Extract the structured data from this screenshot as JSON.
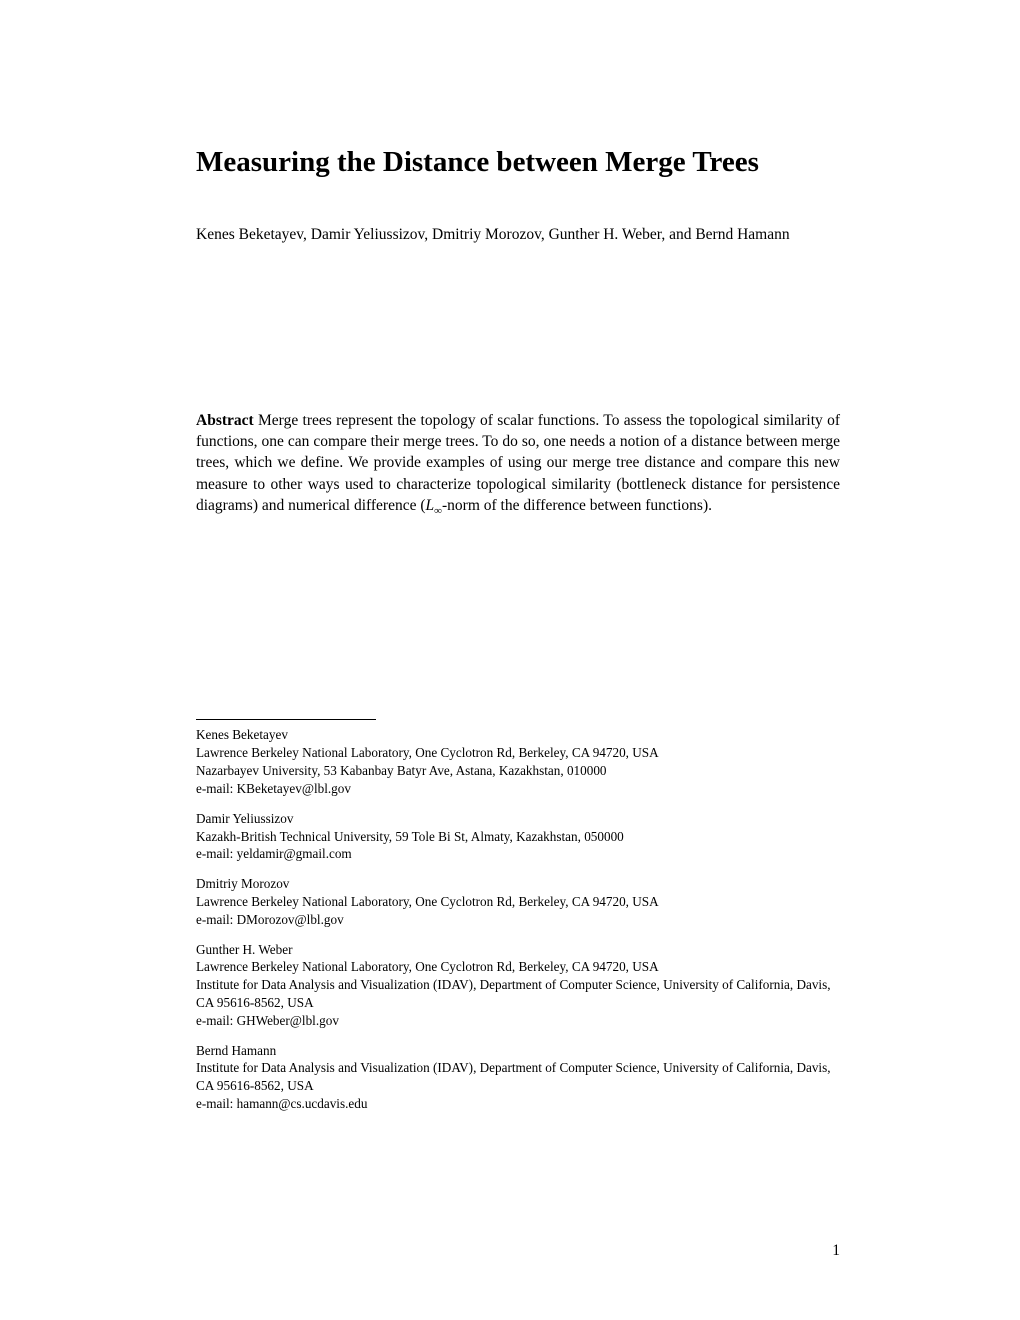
{
  "title": "Measuring the Distance between Merge Trees",
  "authors_line": "Kenes Beketayev, Damir Yeliussizov, Dmitriy Morozov, Gunther H. Weber, and Bernd Hamann",
  "abstract_label": "Abstract",
  "abstract_text_1": " Merge trees represent the topology of scalar functions. To assess the topological similarity of functions, one can compare their merge trees. To do so, one needs a notion of a distance between merge trees, which we define. We provide examples of using our merge tree distance and compare this new measure to other ways used to characterize topological similarity (bottleneck distance for persistence diagrams) and numerical difference (",
  "abstract_L": "L",
  "abstract_infinity": "∞",
  "abstract_text_2": "-norm of the difference between functions).",
  "affiliations": [
    {
      "name": "Kenes Beketayev",
      "lines": [
        "Lawrence Berkeley National Laboratory, One Cyclotron Rd, Berkeley, CA 94720, USA",
        "Nazarbayev University, 53 Kabanbay Batyr Ave, Astana, Kazakhstan, 010000",
        "e-mail: KBeketayev@lbl.gov"
      ]
    },
    {
      "name": "Damir Yeliussizov",
      "lines": [
        "Kazakh-British Technical University, 59 Tole Bi St, Almaty, Kazakhstan, 050000",
        "e-mail: yeldamir@gmail.com"
      ]
    },
    {
      "name": "Dmitriy Morozov",
      "lines": [
        "Lawrence Berkeley National Laboratory, One Cyclotron Rd, Berkeley, CA 94720, USA",
        "e-mail: DMorozov@lbl.gov"
      ]
    },
    {
      "name": "Gunther H. Weber",
      "lines": [
        "Lawrence Berkeley National Laboratory, One Cyclotron Rd, Berkeley, CA 94720, USA",
        "Institute for Data Analysis and Visualization (IDAV), Department of Computer Science, University of California, Davis, CA 95616-8562, USA",
        "e-mail: GHWeber@lbl.gov"
      ]
    },
    {
      "name": "Bernd Hamann",
      "lines": [
        "Institute for Data Analysis and Visualization (IDAV), Department of Computer Science, University of California, Davis, CA 95616-8562, USA",
        "e-mail: hamann@cs.ucdavis.edu"
      ]
    }
  ],
  "page_number": "1"
}
